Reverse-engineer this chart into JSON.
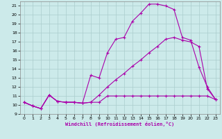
{
  "xlabel": "Windchill (Refroidissement éolien,°C)",
  "background_color": "#cceaea",
  "grid_color": "#aacccc",
  "line_color": "#aa00aa",
  "xlim": [
    -0.5,
    23.5
  ],
  "ylim": [
    9,
    21.5
  ],
  "xticks": [
    0,
    1,
    2,
    3,
    4,
    5,
    6,
    7,
    8,
    9,
    10,
    11,
    12,
    13,
    14,
    15,
    16,
    17,
    18,
    19,
    20,
    21,
    22,
    23
  ],
  "yticks": [
    9,
    10,
    11,
    12,
    13,
    14,
    15,
    16,
    17,
    18,
    19,
    20,
    21
  ],
  "series1_x": [
    0,
    1,
    2,
    3,
    4,
    5,
    6,
    7,
    8,
    9,
    10,
    11,
    12,
    13,
    14,
    15,
    16,
    17,
    18,
    19,
    20,
    21,
    22,
    23
  ],
  "series1_y": [
    10.3,
    9.9,
    9.6,
    11.1,
    10.4,
    10.3,
    10.3,
    10.2,
    10.3,
    10.3,
    11.0,
    11.0,
    11.0,
    11.0,
    11.0,
    11.0,
    11.0,
    11.0,
    11.0,
    11.0,
    11.0,
    11.0,
    11.0,
    10.6
  ],
  "series2_x": [
    0,
    1,
    2,
    3,
    4,
    5,
    6,
    7,
    8,
    9,
    10,
    11,
    12,
    13,
    14,
    15,
    16,
    17,
    18,
    19,
    20,
    21,
    22,
    23
  ],
  "series2_y": [
    10.3,
    9.9,
    9.6,
    11.1,
    10.4,
    10.3,
    10.3,
    10.2,
    13.3,
    13.0,
    15.8,
    17.3,
    17.5,
    19.3,
    20.2,
    21.2,
    21.2,
    21.0,
    20.6,
    17.5,
    17.2,
    14.2,
    12.0,
    10.6
  ],
  "series3_x": [
    0,
    1,
    2,
    3,
    4,
    5,
    6,
    7,
    8,
    9,
    10,
    11,
    12,
    13,
    14,
    15,
    16,
    17,
    18,
    19,
    20,
    21,
    22,
    23
  ],
  "series3_y": [
    10.3,
    9.9,
    9.6,
    11.1,
    10.4,
    10.3,
    10.3,
    10.2,
    10.3,
    11.1,
    12.0,
    12.8,
    13.5,
    14.3,
    15.0,
    15.8,
    16.5,
    17.3,
    17.5,
    17.2,
    17.0,
    16.5,
    11.8,
    10.6
  ]
}
